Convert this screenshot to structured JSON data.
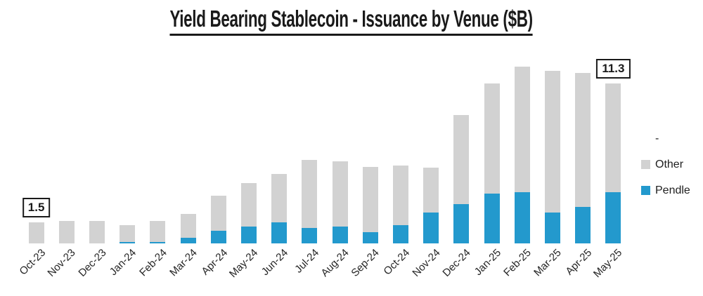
{
  "chart_data": {
    "type": "bar",
    "stacked": true,
    "title": "Yield Bearing Stablecoin - Issuance by Venue ($B)",
    "xlabel": "",
    "ylabel": "",
    "grid": false,
    "ylim": [
      0,
      12.9
    ],
    "axis_label_rotation_deg": -45,
    "categories": [
      "Oct-23",
      "Nov-23",
      "Dec-23",
      "Jan-24",
      "Feb-24",
      "Mar-24",
      "Apr-24",
      "May-24",
      "Jun-24",
      "Jul-24",
      "Aug-24",
      "Sep-24",
      "Oct-24",
      "Nov-24",
      "Dec-24",
      "Jan-25",
      "Feb-25",
      "Mar-25",
      "Apr-25",
      "May-25"
    ],
    "series": [
      {
        "name": "Pendle",
        "color": "#2399cd",
        "values": [
          0,
          0,
          0,
          0.1,
          0.1,
          0.4,
          0.9,
          1.2,
          1.5,
          1.1,
          1.2,
          0.8,
          1.3,
          2.2,
          2.8,
          3.5,
          3.6,
          2.2,
          2.6,
          3.6
        ]
      },
      {
        "name": "Other",
        "color": "#d2d2d2",
        "values": [
          1.5,
          1.6,
          1.6,
          1.2,
          1.5,
          1.7,
          2.5,
          3.1,
          3.4,
          4.8,
          4.6,
          4.6,
          4.2,
          3.2,
          6.3,
          7.8,
          8.9,
          10.0,
          9.5,
          7.7
        ]
      }
    ],
    "annotations": [
      {
        "index": 0,
        "label": "1.5"
      },
      {
        "index": 19,
        "label": "11.3"
      }
    ],
    "legend": {
      "position": "right",
      "items": [
        {
          "label": "-",
          "color": ""
        },
        {
          "label": "Other",
          "color": "#d2d2d2"
        },
        {
          "label": "Pendle",
          "color": "#2399cd"
        }
      ]
    }
  }
}
